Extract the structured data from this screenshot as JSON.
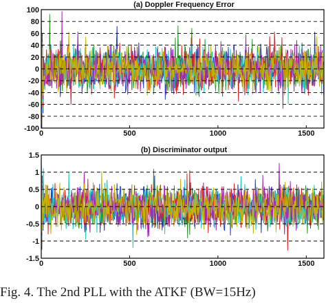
{
  "chart_data": [
    {
      "type": "line",
      "title": "(a) Doppler Frequency Error",
      "xlabel": "",
      "ylabel": "",
      "xlim": [
        0,
        1600
      ],
      "ylim": [
        -100,
        100
      ],
      "xticks": [
        0,
        500,
        1000,
        1500
      ],
      "yticks": [
        -100,
        -80,
        -60,
        -40,
        -20,
        0,
        20,
        40,
        60,
        80,
        100
      ],
      "xtick_labels": [
        "0",
        "500",
        "1000",
        "1500"
      ],
      "ytick_labels": [
        "-100",
        "-80",
        "-60",
        "-40",
        "-20",
        "0",
        "20",
        "40",
        "60",
        "80",
        "100"
      ],
      "grid": "dashed horizontal",
      "samples": 1600,
      "noise_amplitude": 40,
      "initial_transient": {
        "x": [
          0,
          3,
          6,
          10
        ],
        "values": [
          95,
          -100,
          60,
          -75
        ]
      },
      "series": [
        {
          "color": "#1f3fd0"
        },
        {
          "color": "#2a9b2a"
        },
        {
          "color": "#e02020"
        },
        {
          "color": "#18c8c8"
        },
        {
          "color": "#a428b4"
        },
        {
          "color": "#c8b400"
        }
      ]
    },
    {
      "type": "line",
      "title": "(b) Discriminator output",
      "xlabel": "",
      "ylabel": "",
      "xlim": [
        0,
        1600
      ],
      "ylim": [
        -1.5,
        1.5
      ],
      "xticks": [
        0,
        500,
        1000,
        1500
      ],
      "yticks": [
        -1.5,
        -1,
        -0.5,
        0,
        0.5,
        1,
        1.5
      ],
      "xtick_labels": [
        "0",
        "500",
        "1000",
        "1500"
      ],
      "ytick_labels": [
        "-1.5",
        "-1",
        "-0.5",
        "0",
        "0.5",
        "1",
        "1.5"
      ],
      "grid": "dashed horizontal",
      "samples": 1600,
      "noise_amplitude": 0.65,
      "initial_transient": {
        "x": [
          0,
          3,
          6,
          10
        ],
        "values": [
          1.45,
          -1.25,
          0.9,
          -0.7
        ]
      },
      "series": [
        {
          "color": "#1f3fd0"
        },
        {
          "color": "#2a9b2a"
        },
        {
          "color": "#e02020"
        },
        {
          "color": "#18c8c8"
        },
        {
          "color": "#a428b4"
        },
        {
          "color": "#c8b400"
        }
      ]
    }
  ],
  "caption": "Fig. 4.  The 2nd PLL with the ATKF (BW=15Hz)"
}
